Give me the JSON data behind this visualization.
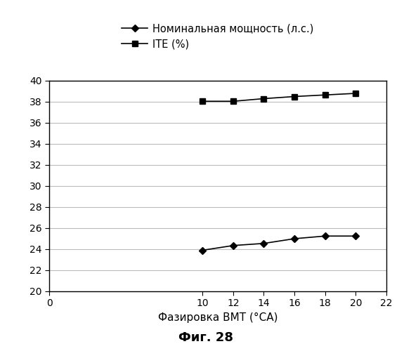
{
  "x": [
    10,
    12,
    14,
    16,
    18,
    20
  ],
  "power_y": [
    23.9,
    24.35,
    24.55,
    25.0,
    25.25,
    25.25
  ],
  "ite_y": [
    38.05,
    38.05,
    38.3,
    38.5,
    38.65,
    38.8
  ],
  "xlim": [
    0,
    22
  ],
  "ylim": [
    20,
    40
  ],
  "xticks": [
    0,
    10,
    12,
    14,
    16,
    18,
    20,
    22
  ],
  "yticks": [
    20,
    22,
    24,
    26,
    28,
    30,
    32,
    34,
    36,
    38,
    40
  ],
  "xlabel": "Фазировка ВМТ (°CA)",
  "legend_power": "Номинальная мощность (л.с.)",
  "legend_ite": "ITE (%)",
  "fig_label": "Фиг. 28",
  "line_color": "#000000",
  "bg_color": "#ffffff",
  "grid_color": "#bbbbbb"
}
